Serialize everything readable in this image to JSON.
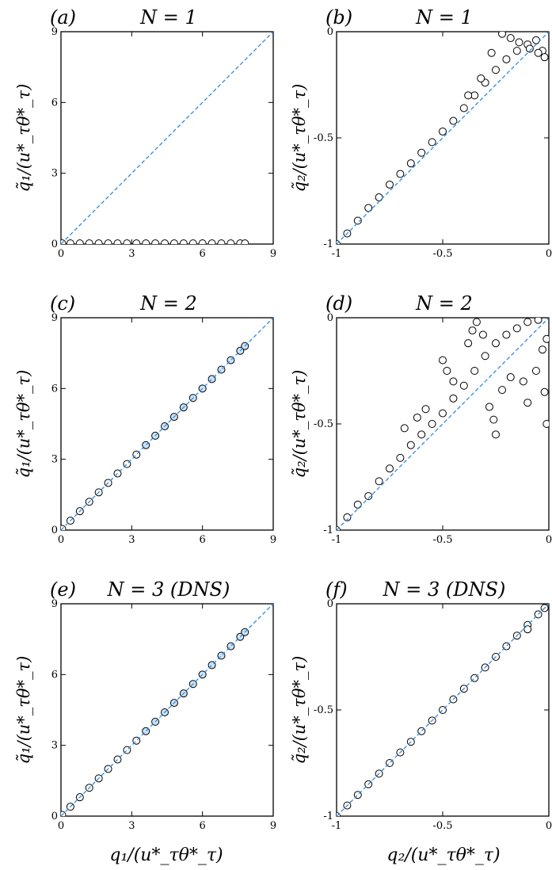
{
  "colors": {
    "frame": "#000000",
    "diagonal": "#2e8be0",
    "marker_edge": "#000000",
    "marker_fill_light": "#ffffff",
    "marker_fill_blue": "#cde4f7"
  },
  "row_labels": {
    "xlabel_left": "q₁/(u*_τθ*_τ)",
    "xlabel_right": "q₂/(u*_τθ*_τ)"
  },
  "chart_data": [
    {
      "type": "scatter",
      "panel": "(a)",
      "title": "N = 1",
      "ylabel": "q̃₁/(u*_τθ*_τ)",
      "xlabel": "",
      "xlim": [
        0,
        9
      ],
      "ylim": [
        0,
        9
      ],
      "xticks": [
        "0",
        "3",
        "6",
        "9"
      ],
      "yticks": [
        "0",
        "3",
        "6",
        "9"
      ],
      "reference_line": "y = x, dashed",
      "series": [
        {
          "points": [
            [
              0.05,
              0.03
            ],
            [
              0.4,
              0.03
            ],
            [
              0.8,
              0.03
            ],
            [
              1.2,
              0.03
            ],
            [
              1.6,
              0.03
            ],
            [
              2.0,
              0.03
            ],
            [
              2.4,
              0.03
            ],
            [
              2.8,
              0.03
            ],
            [
              3.2,
              0.03
            ],
            [
              3.6,
              0.03
            ],
            [
              4.0,
              0.03
            ],
            [
              4.4,
              0.03
            ],
            [
              4.8,
              0.03
            ],
            [
              5.2,
              0.03
            ],
            [
              5.6,
              0.03
            ],
            [
              6.0,
              0.03
            ],
            [
              6.4,
              0.03
            ],
            [
              6.8,
              0.03
            ],
            [
              7.2,
              0.03
            ],
            [
              7.6,
              0.03
            ],
            [
              7.8,
              0.03
            ]
          ]
        }
      ]
    },
    {
      "type": "scatter",
      "panel": "(b)",
      "title": "N = 1",
      "ylabel": "q̃₂/(u*_τθ*_τ)",
      "xlabel": "",
      "xlim": [
        -1,
        0
      ],
      "ylim": [
        -1,
        0
      ],
      "xticks": [
        "-1",
        "-0.5",
        "0"
      ],
      "yticks": [
        "-1",
        "-0.5",
        "0"
      ],
      "reference_line": "y = x, dashed",
      "series": [
        {
          "points": [
            [
              -1.0,
              -1.0
            ],
            [
              -0.95,
              -0.95
            ],
            [
              -0.9,
              -0.89
            ],
            [
              -0.85,
              -0.83
            ],
            [
              -0.8,
              -0.78
            ],
            [
              -0.75,
              -0.72
            ],
            [
              -0.7,
              -0.67
            ],
            [
              -0.65,
              -0.62
            ],
            [
              -0.6,
              -0.57
            ],
            [
              -0.55,
              -0.52
            ],
            [
              -0.5,
              -0.47
            ],
            [
              -0.45,
              -0.42
            ],
            [
              -0.4,
              -0.36
            ],
            [
              -0.35,
              -0.3
            ],
            [
              -0.3,
              -0.24
            ],
            [
              -0.25,
              -0.18
            ],
            [
              -0.2,
              -0.13
            ],
            [
              -0.15,
              -0.09
            ],
            [
              -0.1,
              -0.06
            ],
            [
              -0.06,
              -0.04
            ],
            [
              -0.03,
              -0.09
            ],
            [
              -0.02,
              -0.12
            ],
            [
              -0.05,
              -0.1
            ],
            [
              -0.09,
              -0.08
            ],
            [
              -0.14,
              -0.05
            ],
            [
              -0.18,
              -0.03
            ],
            [
              -0.22,
              -0.01
            ],
            [
              -0.27,
              -0.1
            ],
            [
              -0.32,
              -0.22
            ],
            [
              -0.38,
              -0.3
            ]
          ]
        }
      ]
    },
    {
      "type": "scatter",
      "panel": "(c)",
      "title": "N = 2",
      "ylabel": "q̃₁/(u*_τθ*_τ)",
      "xlabel": "",
      "xlim": [
        0,
        9
      ],
      "ylim": [
        0,
        9
      ],
      "xticks": [
        "0",
        "3",
        "6",
        "9"
      ],
      "yticks": [
        "0",
        "3",
        "6",
        "9"
      ],
      "reference_line": "y = x, dashed",
      "series": [
        {
          "points": [
            [
              0.05,
              0.05
            ],
            [
              0.4,
              0.4
            ],
            [
              0.8,
              0.8
            ],
            [
              1.2,
              1.2
            ],
            [
              1.6,
              1.6
            ],
            [
              2.0,
              2.0
            ],
            [
              2.4,
              2.4
            ],
            [
              2.8,
              2.8
            ],
            [
              3.2,
              3.2
            ],
            [
              3.6,
              3.6
            ],
            [
              4.0,
              4.0
            ],
            [
              4.4,
              4.4
            ],
            [
              4.8,
              4.8
            ],
            [
              5.2,
              5.2
            ],
            [
              5.6,
              5.6
            ],
            [
              6.0,
              6.0
            ],
            [
              6.4,
              6.4
            ],
            [
              6.8,
              6.8
            ],
            [
              7.2,
              7.2
            ],
            [
              7.6,
              7.6
            ],
            [
              7.8,
              7.8
            ]
          ]
        }
      ]
    },
    {
      "type": "scatter",
      "panel": "(d)",
      "title": "N = 2",
      "ylabel": "q̃₂/(u*_τθ*_τ)",
      "xlabel": "",
      "xlim": [
        -1,
        0
      ],
      "ylim": [
        -1,
        0
      ],
      "xticks": [
        "-1",
        "-0.5",
        "0"
      ],
      "yticks": [
        "-1",
        "-0.5",
        "0"
      ],
      "reference_line": "y = x, dashed",
      "series": [
        {
          "points": [
            [
              -1.0,
              -1.0
            ],
            [
              -0.95,
              -0.94
            ],
            [
              -0.9,
              -0.88
            ],
            [
              -0.85,
              -0.84
            ],
            [
              -0.8,
              -0.77
            ],
            [
              -0.75,
              -0.71
            ],
            [
              -0.7,
              -0.66
            ],
            [
              -0.65,
              -0.6
            ],
            [
              -0.6,
              -0.55
            ],
            [
              -0.55,
              -0.5
            ],
            [
              -0.5,
              -0.45
            ],
            [
              -0.45,
              -0.38
            ],
            [
              -0.4,
              -0.32
            ],
            [
              -0.35,
              -0.25
            ],
            [
              -0.3,
              -0.18
            ],
            [
              -0.25,
              -0.12
            ],
            [
              -0.2,
              -0.08
            ],
            [
              -0.15,
              -0.05
            ],
            [
              -0.1,
              -0.02
            ],
            [
              -0.05,
              -0.01
            ],
            [
              -0.68,
              -0.52
            ],
            [
              -0.62,
              -0.47
            ],
            [
              -0.58,
              -0.43
            ],
            [
              -0.5,
              -0.2
            ],
            [
              -0.48,
              -0.25
            ],
            [
              -0.45,
              -0.3
            ],
            [
              -0.38,
              -0.12
            ],
            [
              -0.36,
              -0.06
            ],
            [
              -0.34,
              -0.02
            ],
            [
              -0.31,
              -0.08
            ],
            [
              -0.28,
              -0.42
            ],
            [
              -0.26,
              -0.48
            ],
            [
              -0.25,
              -0.55
            ],
            [
              -0.22,
              -0.34
            ],
            [
              -0.18,
              -0.28
            ],
            [
              -0.12,
              -0.3
            ],
            [
              -0.1,
              -0.4
            ],
            [
              -0.06,
              -0.25
            ],
            [
              -0.03,
              -0.15
            ],
            [
              -0.02,
              -0.35
            ],
            [
              -0.01,
              -0.5
            ],
            [
              -0.01,
              -0.1
            ]
          ]
        }
      ]
    },
    {
      "type": "scatter",
      "panel": "(e)",
      "title": "N = 3 (DNS)",
      "ylabel": "q̃₁/(u*_τθ*_τ)",
      "xlabel": "q₁/(u*_τθ*_τ)",
      "xlim": [
        0,
        9
      ],
      "ylim": [
        0,
        9
      ],
      "xticks": [
        "0",
        "3",
        "6",
        "9"
      ],
      "yticks": [
        "0",
        "3",
        "6",
        "9"
      ],
      "reference_line": "y = x, dashed",
      "series": [
        {
          "points": [
            [
              0.05,
              0.05
            ],
            [
              0.4,
              0.4
            ],
            [
              0.8,
              0.8
            ],
            [
              1.2,
              1.2
            ],
            [
              1.6,
              1.6
            ],
            [
              2.0,
              2.0
            ],
            [
              2.4,
              2.4
            ],
            [
              2.8,
              2.8
            ],
            [
              3.2,
              3.2
            ],
            [
              3.6,
              3.6
            ],
            [
              4.0,
              4.0
            ],
            [
              4.4,
              4.4
            ],
            [
              4.8,
              4.8
            ],
            [
              5.2,
              5.2
            ],
            [
              5.6,
              5.6
            ],
            [
              6.0,
              6.0
            ],
            [
              6.4,
              6.4
            ],
            [
              6.8,
              6.8
            ],
            [
              7.2,
              7.2
            ],
            [
              7.6,
              7.6
            ],
            [
              7.8,
              7.8
            ]
          ]
        }
      ]
    },
    {
      "type": "scatter",
      "panel": "(f)",
      "title": "N = 3 (DNS)",
      "ylabel": "q̃₂/(u*_τθ*_τ)",
      "xlabel": "q₂/(u*_τθ*_τ)",
      "xlim": [
        -1,
        0
      ],
      "ylim": [
        -1,
        0
      ],
      "xticks": [
        "-1",
        "-0.5",
        "0"
      ],
      "yticks": [
        "-1",
        "-0.5",
        "0"
      ],
      "reference_line": "y = x, dashed",
      "series": [
        {
          "points": [
            [
              -1.0,
              -1.0
            ],
            [
              -0.95,
              -0.95
            ],
            [
              -0.9,
              -0.9
            ],
            [
              -0.85,
              -0.85
            ],
            [
              -0.8,
              -0.8
            ],
            [
              -0.75,
              -0.75
            ],
            [
              -0.7,
              -0.7
            ],
            [
              -0.65,
              -0.65
            ],
            [
              -0.6,
              -0.6
            ],
            [
              -0.55,
              -0.55
            ],
            [
              -0.5,
              -0.5
            ],
            [
              -0.45,
              -0.45
            ],
            [
              -0.4,
              -0.4
            ],
            [
              -0.35,
              -0.35
            ],
            [
              -0.3,
              -0.3
            ],
            [
              -0.25,
              -0.25
            ],
            [
              -0.2,
              -0.2
            ],
            [
              -0.15,
              -0.15
            ],
            [
              -0.1,
              -0.1
            ],
            [
              -0.05,
              -0.05
            ],
            [
              -0.02,
              -0.02
            ],
            [
              -0.1,
              -0.12
            ]
          ]
        }
      ]
    }
  ]
}
